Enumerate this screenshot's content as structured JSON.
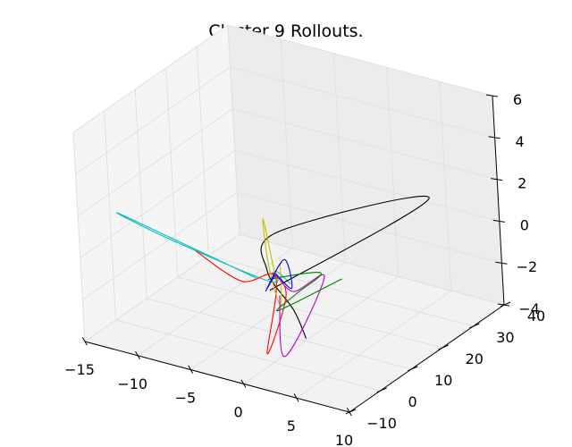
{
  "chart_data": {
    "type": "line",
    "projection": "3d",
    "title": "Cluster 9 Rollouts.",
    "xlabel": "",
    "ylabel": "",
    "zlabel": "",
    "xlim": [
      -15,
      10
    ],
    "ylim": [
      -10,
      40
    ],
    "zlim": [
      -4,
      6
    ],
    "x_ticks": [
      "−15",
      "−10",
      "−5",
      "0",
      "5",
      "10"
    ],
    "y_ticks": [
      "−10",
      "0",
      "10",
      "20",
      "30",
      "40"
    ],
    "z_ticks": [
      "−4",
      "−2",
      "0",
      "2",
      "4",
      "6"
    ],
    "grid": true,
    "series": [
      {
        "color": "#00bfbf",
        "x": [
          -1,
          -14,
          -10,
          -0.5,
          0.5,
          1.5
        ],
        "y": [
          -1,
          0,
          0.5,
          1.2,
          0.3,
          1.5
        ],
        "z": [
          0,
          1.2,
          0.6,
          -0.3,
          0.4,
          -0.2
        ]
      },
      {
        "color": "#000000",
        "x": [
          -1,
          4,
          0.2,
          -0.6,
          1.5,
          3
        ],
        "y": [
          3,
          38,
          2.5,
          1.2,
          2,
          0.5
        ],
        "z": [
          -1,
          0.5,
          2,
          0.2,
          -1.5,
          -2.5
        ]
      },
      {
        "color": "#ff0000",
        "x": [
          -7,
          -3,
          0.5,
          -0.5,
          1,
          0.2
        ],
        "y": [
          0,
          0.8,
          0.2,
          -0.5,
          1.5,
          0.3
        ],
        "z": [
          0.4,
          -0.6,
          0.1,
          -3.6,
          -0.8,
          0.3
        ]
      },
      {
        "color": "#bfbf00",
        "x": [
          0.2,
          -0.8,
          -0.3,
          0.8,
          0.5
        ],
        "y": [
          1,
          1.5,
          0.8,
          0.3,
          1.8
        ],
        "z": [
          0.1,
          2.6,
          0.5,
          -1.2,
          0.6
        ]
      },
      {
        "color": "#bf00bf",
        "x": [
          0.6,
          1.2,
          4,
          1.6,
          0.3
        ],
        "y": [
          0.8,
          -0.5,
          4,
          2,
          1.2
        ],
        "z": [
          -0.8,
          -3.5,
          0.2,
          -0.6,
          0.1
        ]
      },
      {
        "color": "#008000",
        "x": [
          -0.5,
          3.5,
          2,
          0.5,
          6
        ],
        "y": [
          1,
          4.5,
          1.5,
          0.5,
          3
        ],
        "z": [
          -0.2,
          0.3,
          -0.6,
          -1.5,
          0.5
        ]
      },
      {
        "color": "#0000ff",
        "x": [
          0.5,
          1.8,
          0.8,
          -0.6,
          0.2
        ],
        "y": [
          0.2,
          0.8,
          2.2,
          0.5,
          1
        ],
        "z": [
          0.3,
          -0.3,
          0.8,
          -0.7,
          0.1
        ]
      }
    ]
  }
}
